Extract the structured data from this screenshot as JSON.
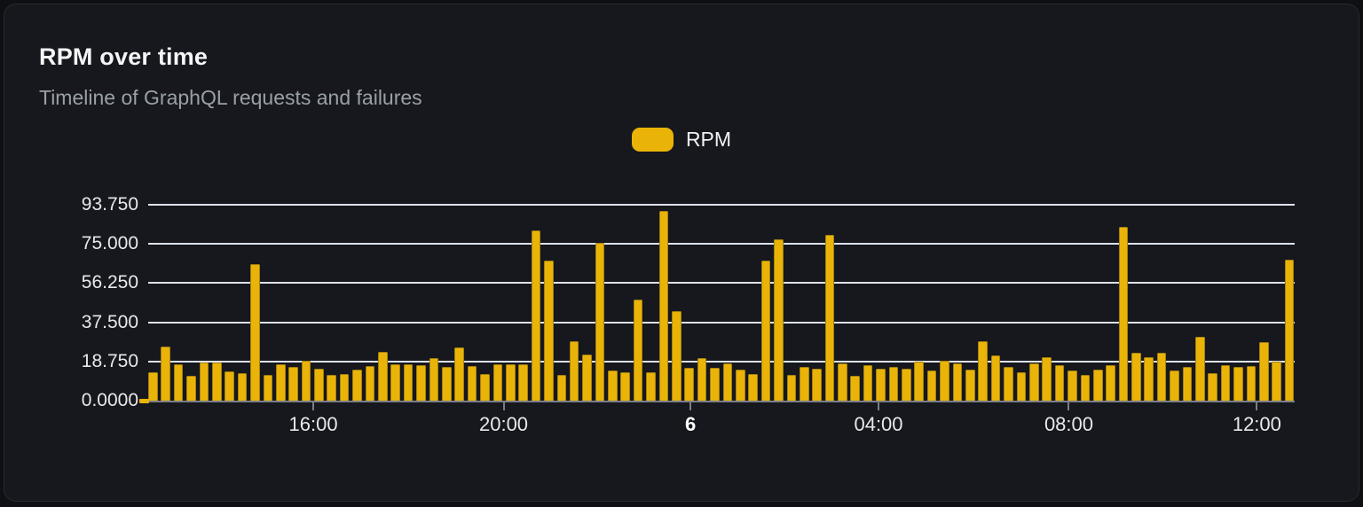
{
  "card": {
    "title": "RPM over time",
    "subtitle": "Timeline of GraphQL requests and failures"
  },
  "legend": {
    "label": "RPM",
    "swatch_color": "#eab308"
  },
  "colors": {
    "page_bg": "#0e1014",
    "card_bg": "#16181d",
    "card_border": "#272a31",
    "bar_fill": "#eab308",
    "bar_edge": "#a5820f",
    "gridline": "#dce2ec",
    "axis_line": "#7a7f87",
    "title_text": "#f4f5f6",
    "subtitle_text": "#9aa0a8",
    "axis_label_text": "#e7e9ec"
  },
  "chart_data": {
    "type": "bar",
    "title": "RPM over time",
    "subtitle": "Timeline of GraphQL requests and failures",
    "series_name": "RPM",
    "legend_position": "top-center",
    "grid": true,
    "ylim": [
      0,
      93.75
    ],
    "y_ticks": [
      {
        "label": "0.0000",
        "value": 0
      },
      {
        "label": "18.750",
        "value": 18.75
      },
      {
        "label": "37.500",
        "value": 37.5
      },
      {
        "label": "56.250",
        "value": 56.25
      },
      {
        "label": "75.000",
        "value": 75
      },
      {
        "label": "93.750",
        "value": 93.75
      }
    ],
    "x_ticks": [
      {
        "label": "16:00",
        "pos_pct": 14.4,
        "bold": false
      },
      {
        "label": "20:00",
        "pos_pct": 31.0,
        "bold": false
      },
      {
        "label": "6",
        "pos_pct": 47.3,
        "bold": true
      },
      {
        "label": "04:00",
        "pos_pct": 63.7,
        "bold": false
      },
      {
        "label": "08:00",
        "pos_pct": 80.3,
        "bold": false
      },
      {
        "label": "12:00",
        "pos_pct": 96.7,
        "bold": false
      }
    ],
    "zero_marker_at_axis_start": true,
    "values": [
      13.6,
      26.0,
      17.5,
      11.9,
      18.4,
      18.4,
      14.0,
      13.0,
      65.3,
      12.3,
      17.5,
      16.2,
      18.9,
      15.4,
      12.3,
      12.9,
      14.7,
      16.5,
      23.4,
      17.5,
      17.5,
      16.8,
      20.5,
      16.2,
      25.6,
      16.5,
      12.9,
      17.2,
      17.5,
      17.2,
      81.6,
      67.2,
      12.5,
      28.5,
      22.0,
      75.7,
      14.4,
      13.6,
      48.3,
      13.6,
      90.7,
      43.0,
      15.7,
      20.3,
      15.8,
      17.8,
      15.0,
      12.6,
      66.9,
      77.2,
      12.3,
      16.1,
      15.3,
      79.5,
      18.0,
      12.0,
      16.9,
      15.4,
      16.0,
      15.2,
      18.6,
      14.5,
      19.3,
      17.8,
      15.0,
      28.3,
      21.5,
      16.0,
      13.6,
      17.8,
      20.6,
      17.1,
      14.5,
      12.2,
      14.7,
      16.8,
      83.2,
      22.9,
      21.0,
      22.8,
      14.5,
      16.2,
      30.5,
      13.3,
      16.8,
      16.1,
      16.4,
      27.8,
      18.6,
      67.4
    ]
  }
}
